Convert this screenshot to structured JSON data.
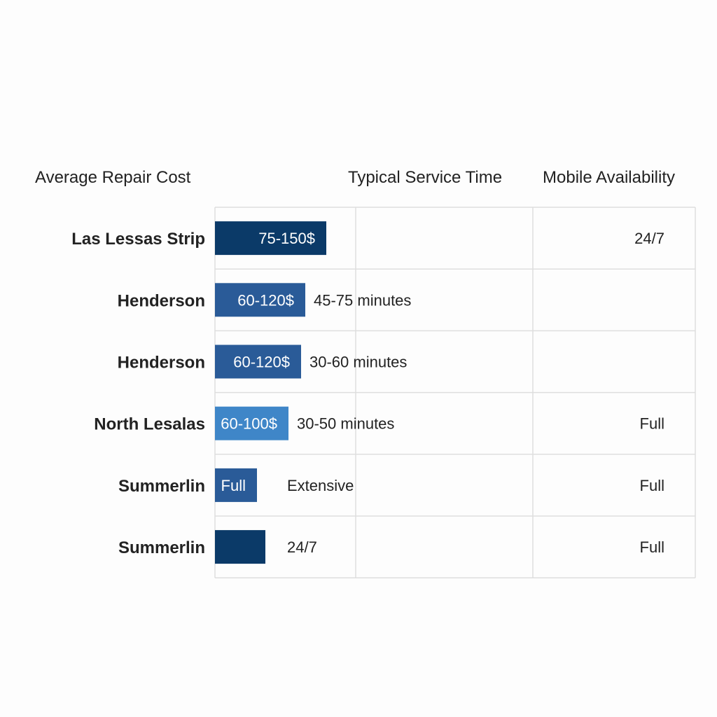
{
  "headers": {
    "cost": "Average Repair Cost",
    "time": "Typical Service Time",
    "mobile": "Mobile Availability"
  },
  "chart_data": {
    "type": "table",
    "rows": [
      {
        "label": "Las Lessas Strip",
        "bar_value": 0.53,
        "bar_text": "75-150$",
        "bar_color": "#0b3a68",
        "time": "",
        "mobile": "24/7"
      },
      {
        "label": "Henderson",
        "bar_value": 0.43,
        "bar_text": "60-120$",
        "bar_color": "#2a5b98",
        "time": "45-75 minutes",
        "mobile": ""
      },
      {
        "label": "Henderson",
        "bar_value": 0.41,
        "bar_text": "60-120$",
        "bar_color": "#2a5b98",
        "time": "30-60 minutes",
        "mobile": ""
      },
      {
        "label": "North Lesalas",
        "bar_value": 0.35,
        "bar_text": "60-100$",
        "bar_color": "#3f86c8",
        "time": "30-50 minutes",
        "mobile": "Full"
      },
      {
        "label": "Summerlin",
        "bar_value": 0.2,
        "bar_text": "Full",
        "bar_color": "#2a5b98",
        "time": "Extensive",
        "mobile": "Full"
      },
      {
        "label": "Summerlin",
        "bar_value": 0.24,
        "bar_text": "",
        "bar_color": "#0b3a68",
        "time": "24/7",
        "mobile": "Full"
      }
    ]
  }
}
